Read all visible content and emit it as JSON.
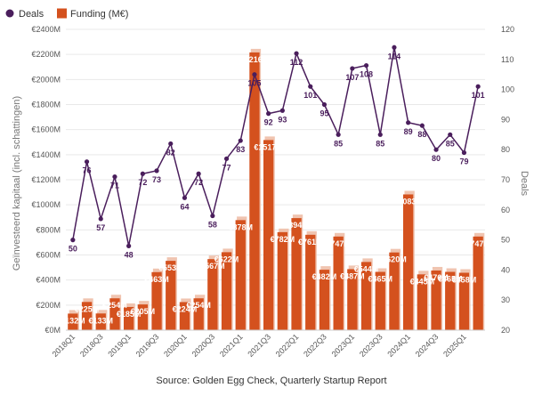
{
  "chart_data": {
    "type": "bar",
    "legend": [
      {
        "name": "Deals",
        "color": "#4a1e5c"
      },
      {
        "name": "Funding (M€)",
        "color": "#d4511e"
      }
    ],
    "legend_position": "top-left",
    "ylabel_left": "Geïnvesteerd kapitaal (incl. schattingen)",
    "ylabel_right": "Deals",
    "yleft_ticks": [
      "€0M",
      "€200M",
      "€400M",
      "€600M",
      "€800M",
      "€1000M",
      "€1200M",
      "€1400M",
      "€1600M",
      "€1800M",
      "€2000M",
      "€2200M",
      "€2400M"
    ],
    "yright_ticks": [
      "20",
      "30",
      "40",
      "50",
      "60",
      "70",
      "80",
      "90",
      "100",
      "110",
      "120"
    ],
    "ylim_left": [
      0,
      2400
    ],
    "ylim_right": [
      20,
      120
    ],
    "xtick_labels": [
      "2018Q1",
      "2018Q3",
      "2019Q1",
      "2019Q3",
      "2020Q1",
      "2020Q3",
      "2021Q1",
      "2021Q3",
      "2022Q1",
      "2022Q3",
      "2023Q1",
      "2023Q3",
      "2024Q1",
      "2024Q3",
      "2025Q1"
    ],
    "categories": [
      "2018Q1",
      "2018Q2",
      "2018Q3",
      "2018Q4",
      "2019Q1",
      "2019Q2",
      "2019Q3",
      "2019Q4",
      "2020Q1",
      "2020Q2",
      "2020Q3",
      "2020Q4",
      "2021Q1",
      "2021Q2",
      "2021Q3",
      "2021Q4",
      "2022Q1",
      "2022Q2",
      "2022Q3",
      "2022Q4",
      "2023Q1",
      "2023Q2",
      "2023Q3",
      "2023Q4",
      "2024Q1",
      "2024Q2",
      "2024Q3",
      "2024Q4",
      "2025Q1",
      "2025Q2"
    ],
    "funding": [
      132,
      225,
      133,
      254,
      185,
      205,
      463,
      553,
      224,
      254,
      567,
      622,
      878,
      2216,
      1517,
      782,
      894,
      761,
      482,
      747,
      487,
      544,
      465,
      620,
      1083,
      445,
      476,
      465,
      458,
      747
    ],
    "funding_labels": [
      "€132M",
      "€225M",
      "€133M",
      "€254M",
      "€185M",
      "€205M",
      "€463M",
      "€553M",
      "€224M",
      "€254M",
      "€567M",
      "€622M",
      "€878M",
      "€2216M",
      "€1517M",
      "€782M",
      "€894M",
      "€761M",
      "€482M",
      "€747M",
      "€487M",
      "€544M",
      "€465M",
      "€620M",
      "€1083M",
      "€445M",
      "€476M",
      "€465M",
      "€458M",
      "€747M"
    ],
    "deals": [
      50,
      76,
      57,
      71,
      48,
      72,
      73,
      82,
      64,
      72,
      58,
      77,
      83,
      105,
      92,
      93,
      112,
      101,
      95,
      85,
      107,
      108,
      85,
      114,
      89,
      88,
      80,
      85,
      79,
      101
    ],
    "colors": {
      "funding": "#d4511e",
      "funding_shadow": "#f0c4b0",
      "deals": "#4a1e5c"
    },
    "grid": true
  },
  "source": "Source: Golden Egg Check, Quarterly Startup Report"
}
